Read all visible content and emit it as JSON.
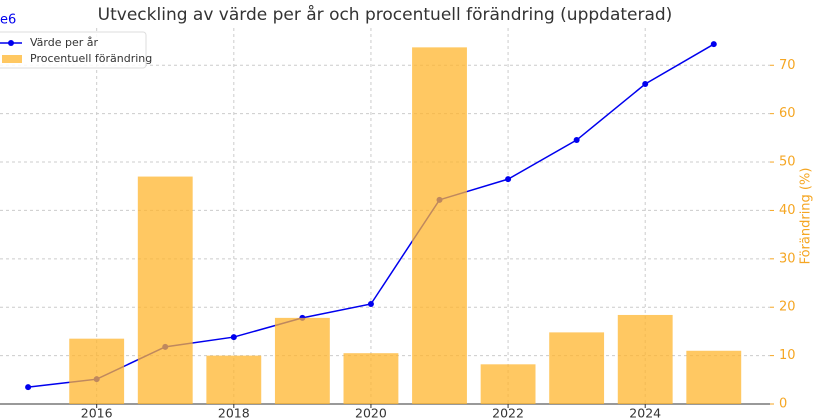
{
  "chart_data": {
    "type": "combo",
    "title": "Utveckling av värde per år och procentuell förändring (uppdaterad)",
    "offset_label": "e6",
    "y2label": "Förändring (%)",
    "xlim": [
      2014.59,
      2025.82
    ],
    "xticks": [
      2016,
      2018,
      2020,
      2022,
      2024
    ],
    "ylim": [
      0,
      10
    ],
    "y2lim": [
      0,
      77.7
    ],
    "y2ticks": [
      0,
      10,
      20,
      30,
      40,
      50,
      60,
      70
    ],
    "grid": true,
    "legend": "upper-left",
    "series": [
      {
        "name": "Värde per år",
        "type": "line",
        "color": "#0000ee",
        "x": [
          2015,
          2016,
          2017,
          2018,
          2019,
          2020,
          2021,
          2022,
          2023,
          2024,
          2025
        ],
        "values": [
          0.45,
          0.66,
          1.52,
          1.78,
          2.29,
          2.66,
          5.43,
          5.98,
          7.02,
          8.51,
          9.57
        ]
      },
      {
        "name": "Procentuell förändring",
        "type": "bar",
        "axis": "y2",
        "color": "#ffb52e",
        "x": [
          2016,
          2017,
          2018,
          2019,
          2020,
          2021,
          2022,
          2023,
          2024,
          2025
        ],
        "values": [
          13.5,
          47,
          10,
          17.8,
          10.5,
          73.7,
          8.2,
          14.8,
          18.4,
          11
        ]
      }
    ]
  }
}
